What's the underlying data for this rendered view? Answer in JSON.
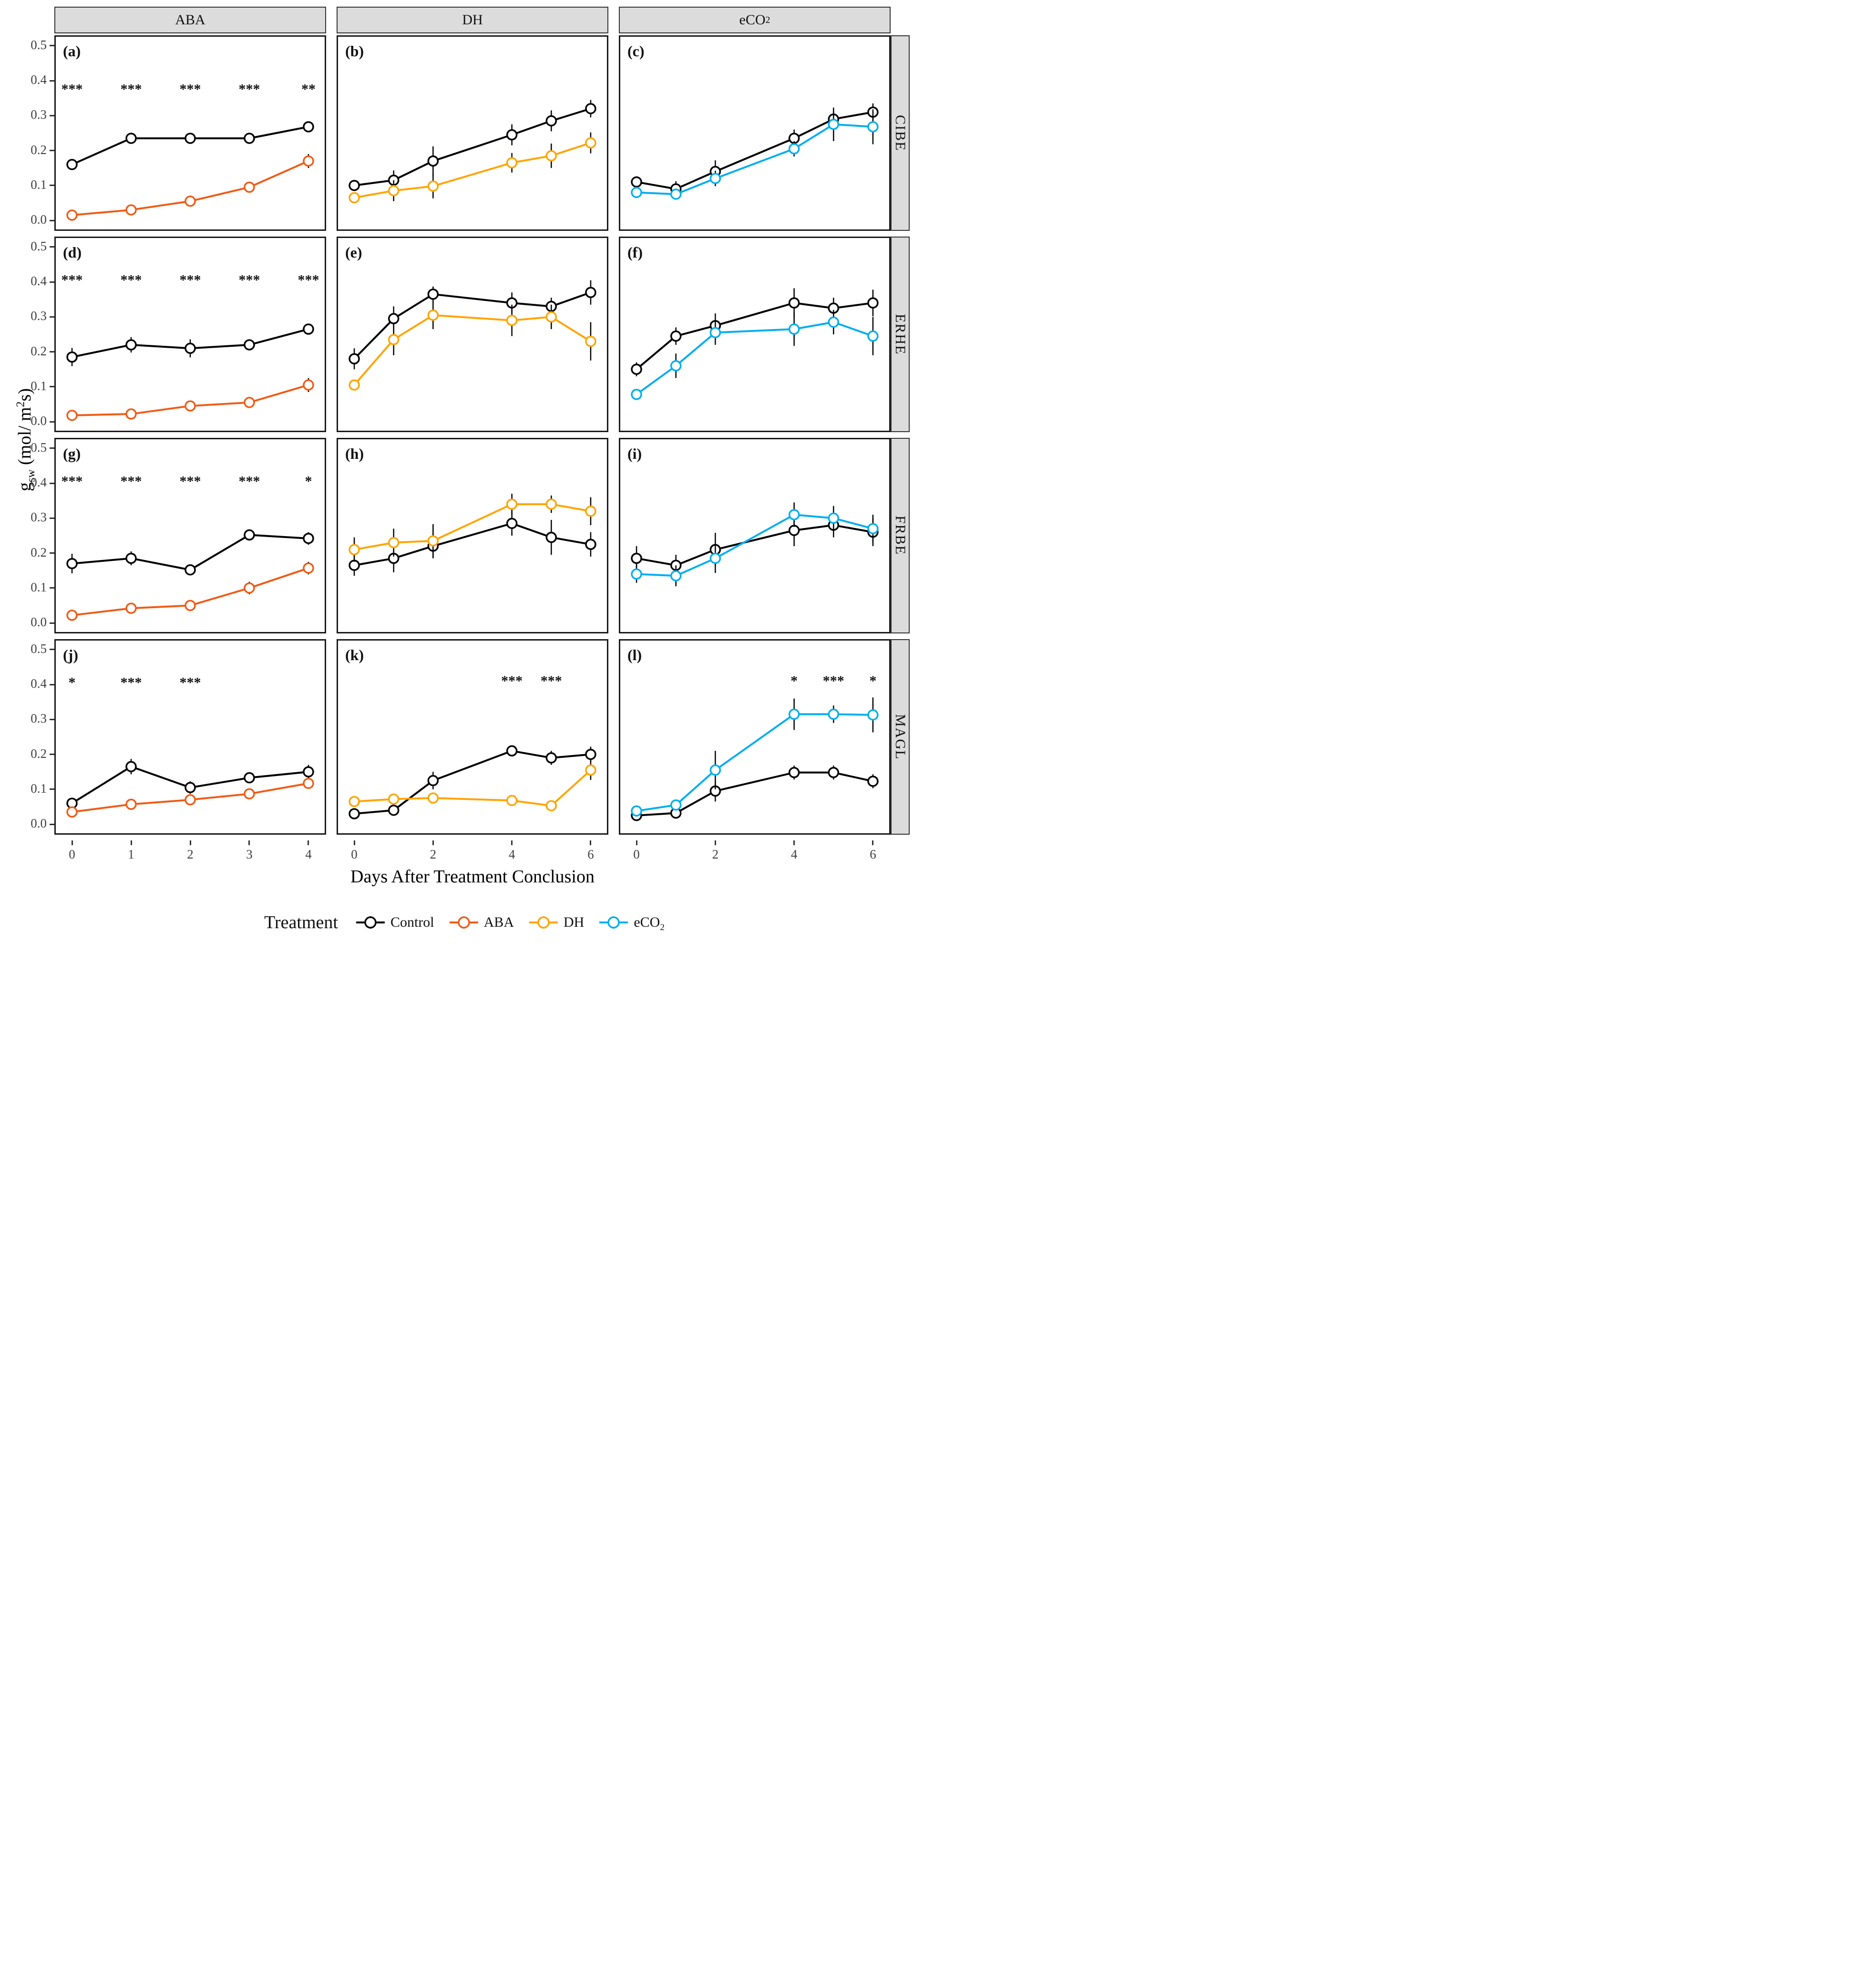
{
  "figure": {
    "col_headers": [
      {
        "text": "ABA",
        "sub": ""
      },
      {
        "text": "DH",
        "sub": ""
      },
      {
        "text": "eCO",
        "sub": "2"
      }
    ],
    "row_labels": [
      "CIBE",
      "ERHE",
      "FRBE",
      "MAGL"
    ],
    "xlabel": "Days After Treatment Conclusion",
    "ylabel": {
      "main": "g",
      "sub": "sw",
      "unit_pre": " (mol/ m",
      "sup": "2",
      "unit_post": "s)"
    },
    "yticks": [
      "0.0",
      "0.1",
      "0.2",
      "0.3",
      "0.4",
      "0.5"
    ],
    "ylim": [
      0,
      0.5
    ],
    "xticks": [
      [
        0,
        1,
        2,
        3,
        4
      ],
      [
        0,
        2,
        4,
        6
      ],
      [
        0,
        2,
        4,
        6
      ]
    ],
    "xmax_per_col": [
      4,
      6,
      6
    ],
    "colors": {
      "control": "#000000",
      "aba": "#F05B16",
      "dh": "#FFA400",
      "eco2": "#00AEEF",
      "strip_bg": "#DCDCDC",
      "strip_border": "#333333",
      "panel_border": "#1a1a1a"
    },
    "legend": {
      "title": "Treatment",
      "items": [
        {
          "label": "Control",
          "sub": "",
          "color": "#000000"
        },
        {
          "label": "ABA",
          "sub": "",
          "color": "#F05B16"
        },
        {
          "label": "DH",
          "sub": "",
          "color": "#FFA400"
        },
        {
          "label": "eCO",
          "sub": "2",
          "color": "#00AEEF"
        }
      ]
    }
  },
  "chart_data": [
    {
      "type": "line",
      "letter": "(a)",
      "col": "ABA",
      "row": "CIBE",
      "x": [
        0,
        1,
        2,
        3,
        4
      ],
      "xmax": 4,
      "ylim": [
        0,
        0.5
      ],
      "sig": [
        "***",
        "***",
        "***",
        "***",
        "**"
      ],
      "sig_y": 0.375,
      "series": [
        {
          "name": "Control",
          "color": "#000000",
          "values": [
            0.16,
            0.235,
            0.235,
            0.235,
            0.268
          ],
          "err": [
            0.013,
            0.012,
            0.012,
            0.012,
            0.014
          ]
        },
        {
          "name": "ABA",
          "color": "#F05B16",
          "values": [
            0.015,
            0.03,
            0.055,
            0.095,
            0.17
          ],
          "err": [
            0.004,
            0.006,
            0.007,
            0.01,
            0.02
          ]
        }
      ]
    },
    {
      "type": "line",
      "letter": "(b)",
      "col": "DH",
      "row": "CIBE",
      "x": [
        0,
        1,
        2,
        4,
        5,
        6
      ],
      "xmax": 6,
      "ylim": [
        0,
        0.5
      ],
      "sig": [
        "",
        "",
        "",
        "",
        "",
        ""
      ],
      "sig_y": 0.4,
      "series": [
        {
          "name": "Control",
          "color": "#000000",
          "values": [
            0.1,
            0.115,
            0.17,
            0.245,
            0.285,
            0.32
          ],
          "err": [
            0.012,
            0.028,
            0.042,
            0.03,
            0.03,
            0.025
          ]
        },
        {
          "name": "DH",
          "color": "#FFA400",
          "values": [
            0.065,
            0.085,
            0.098,
            0.165,
            0.185,
            0.222
          ],
          "err": [
            0.012,
            0.03,
            0.035,
            0.028,
            0.035,
            0.03
          ]
        }
      ]
    },
    {
      "type": "line",
      "letter": "(c)",
      "col": "eCO2",
      "row": "CIBE",
      "x": [
        0,
        1,
        2,
        4,
        5,
        6
      ],
      "xmax": 6,
      "ylim": [
        0,
        0.5
      ],
      "sig": [
        "",
        "",
        "",
        "",
        "",
        ""
      ],
      "sig_y": 0.4,
      "series": [
        {
          "name": "Control",
          "color": "#000000",
          "values": [
            0.11,
            0.09,
            0.14,
            0.235,
            0.29,
            0.31
          ],
          "err": [
            0.015,
            0.022,
            0.032,
            0.025,
            0.022,
            0.025
          ]
        },
        {
          "name": "eCO2",
          "color": "#00AEEF",
          "values": [
            0.08,
            0.075,
            0.12,
            0.205,
            0.275,
            0.268
          ],
          "err": [
            0.013,
            0.015,
            0.022,
            0.022,
            0.048,
            0.05
          ]
        }
      ]
    },
    {
      "type": "line",
      "letter": "(d)",
      "col": "ABA",
      "row": "ERHE",
      "x": [
        0,
        1,
        2,
        3,
        4
      ],
      "xmax": 4,
      "ylim": [
        0,
        0.5
      ],
      "sig": [
        "***",
        "***",
        "***",
        "***",
        "***"
      ],
      "sig_y": 0.405,
      "series": [
        {
          "name": "Control",
          "color": "#000000",
          "values": [
            0.185,
            0.22,
            0.21,
            0.22,
            0.265
          ],
          "err": [
            0.026,
            0.022,
            0.026,
            0.012,
            0.013
          ]
        },
        {
          "name": "ABA",
          "color": "#F05B16",
          "values": [
            0.018,
            0.022,
            0.045,
            0.055,
            0.105
          ],
          "err": [
            0.005,
            0.006,
            0.008,
            0.01,
            0.02
          ]
        }
      ]
    },
    {
      "type": "line",
      "letter": "(e)",
      "col": "DH",
      "row": "ERHE",
      "x": [
        0,
        1,
        2,
        4,
        5,
        6
      ],
      "xmax": 6,
      "ylim": [
        0,
        0.5
      ],
      "sig": [
        "",
        "",
        "",
        "",
        "",
        ""
      ],
      "sig_y": 0.4,
      "series": [
        {
          "name": "Control",
          "color": "#000000",
          "values": [
            0.18,
            0.295,
            0.365,
            0.34,
            0.33,
            0.37
          ],
          "err": [
            0.03,
            0.035,
            0.022,
            0.03,
            0.025,
            0.035
          ]
        },
        {
          "name": "DH",
          "color": "#FFA400",
          "values": [
            0.105,
            0.235,
            0.305,
            0.29,
            0.3,
            0.23
          ],
          "err": [
            0.015,
            0.045,
            0.04,
            0.045,
            0.035,
            0.055
          ]
        }
      ]
    },
    {
      "type": "line",
      "letter": "(f)",
      "col": "eCO2",
      "row": "ERHE",
      "x": [
        0,
        1,
        2,
        4,
        5,
        6
      ],
      "xmax": 6,
      "ylim": [
        0,
        0.5
      ],
      "sig": [
        "",
        "",
        "",
        "",
        "",
        ""
      ],
      "sig_y": 0.4,
      "series": [
        {
          "name": "Control",
          "color": "#000000",
          "values": [
            0.15,
            0.245,
            0.275,
            0.34,
            0.325,
            0.34
          ],
          "err": [
            0.02,
            0.025,
            0.035,
            0.042,
            0.03,
            0.038
          ]
        },
        {
          "name": "eCO2",
          "color": "#00AEEF",
          "values": [
            0.078,
            0.16,
            0.255,
            0.265,
            0.285,
            0.245
          ],
          "err": [
            0.01,
            0.035,
            0.035,
            0.048,
            0.035,
            0.055
          ]
        }
      ]
    },
    {
      "type": "line",
      "letter": "(g)",
      "col": "ABA",
      "row": "FRBE",
      "x": [
        0,
        1,
        2,
        3,
        4
      ],
      "xmax": 4,
      "ylim": [
        0,
        0.5
      ],
      "sig": [
        "***",
        "***",
        "***",
        "***",
        "*"
      ],
      "sig_y": 0.405,
      "series": [
        {
          "name": "Control",
          "color": "#000000",
          "values": [
            0.17,
            0.185,
            0.152,
            0.252,
            0.242
          ],
          "err": [
            0.028,
            0.02,
            0.015,
            0.015,
            0.018
          ]
        },
        {
          "name": "ABA",
          "color": "#F05B16",
          "values": [
            0.022,
            0.042,
            0.05,
            0.1,
            0.157
          ],
          "err": [
            0.008,
            0.013,
            0.01,
            0.018,
            0.018
          ]
        }
      ]
    },
    {
      "type": "line",
      "letter": "(h)",
      "col": "DH",
      "row": "FRBE",
      "x": [
        0,
        1,
        2,
        4,
        5,
        6
      ],
      "xmax": 6,
      "ylim": [
        0,
        0.5
      ],
      "sig": [
        "",
        "",
        "",
        "",
        "",
        ""
      ],
      "sig_y": 0.4,
      "series": [
        {
          "name": "Control",
          "color": "#000000",
          "values": [
            0.165,
            0.185,
            0.22,
            0.285,
            0.245,
            0.225
          ],
          "err": [
            0.03,
            0.04,
            0.035,
            0.035,
            0.05,
            0.035
          ]
        },
        {
          "name": "DH",
          "color": "#FFA400",
          "values": [
            0.21,
            0.23,
            0.235,
            0.34,
            0.34,
            0.32
          ],
          "err": [
            0.035,
            0.04,
            0.048,
            0.03,
            0.025,
            0.04
          ]
        }
      ]
    },
    {
      "type": "line",
      "letter": "(i)",
      "col": "eCO2",
      "row": "FRBE",
      "x": [
        0,
        1,
        2,
        4,
        5,
        6
      ],
      "xmax": 6,
      "ylim": [
        0,
        0.5
      ],
      "sig": [
        "",
        "",
        "",
        "",
        "",
        ""
      ],
      "sig_y": 0.4,
      "series": [
        {
          "name": "Control",
          "color": "#000000",
          "values": [
            0.185,
            0.165,
            0.21,
            0.265,
            0.28,
            0.26
          ],
          "err": [
            0.035,
            0.03,
            0.048,
            0.045,
            0.035,
            0.04
          ]
        },
        {
          "name": "eCO2",
          "color": "#00AEEF",
          "values": [
            0.14,
            0.135,
            0.185,
            0.31,
            0.3,
            0.27
          ],
          "err": [
            0.025,
            0.03,
            0.042,
            0.035,
            0.035,
            0.04
          ]
        }
      ]
    },
    {
      "type": "line",
      "letter": "(j)",
      "col": "ABA",
      "row": "MAGL",
      "x": [
        0,
        1,
        2,
        3,
        4
      ],
      "xmax": 4,
      "ylim": [
        0,
        0.5
      ],
      "sig": [
        "*",
        "***",
        "***",
        "",
        ""
      ],
      "sig_y": 0.405,
      "series": [
        {
          "name": "Control",
          "color": "#000000",
          "values": [
            0.06,
            0.165,
            0.105,
            0.133,
            0.15
          ],
          "err": [
            0.015,
            0.022,
            0.018,
            0.015,
            0.02
          ]
        },
        {
          "name": "ABA",
          "color": "#F05B16",
          "values": [
            0.035,
            0.057,
            0.07,
            0.087,
            0.117
          ],
          "err": [
            0.012,
            0.01,
            0.012,
            0.015,
            0.015
          ]
        }
      ]
    },
    {
      "type": "line",
      "letter": "(k)",
      "col": "DH",
      "row": "MAGL",
      "x": [
        0,
        1,
        2,
        4,
        5,
        6
      ],
      "xmax": 6,
      "ylim": [
        0,
        0.5
      ],
      "sig": [
        "",
        "",
        "",
        "***",
        "***",
        ""
      ],
      "sig_y": 0.41,
      "series": [
        {
          "name": "Control",
          "color": "#000000",
          "values": [
            0.03,
            0.04,
            0.125,
            0.21,
            0.19,
            0.2
          ],
          "err": [
            0.008,
            0.01,
            0.025,
            0.015,
            0.02,
            0.022
          ]
        },
        {
          "name": "DH",
          "color": "#FFA400",
          "values": [
            0.065,
            0.072,
            0.075,
            0.068,
            0.053,
            0.155
          ],
          "err": [
            0.012,
            0.01,
            0.012,
            0.012,
            0.01,
            0.028
          ]
        }
      ]
    },
    {
      "type": "line",
      "letter": "(l)",
      "col": "eCO2",
      "row": "MAGL",
      "x": [
        0,
        1,
        2,
        4,
        5,
        6
      ],
      "xmax": 6,
      "ylim": [
        0,
        0.5
      ],
      "sig": [
        "",
        "",
        "",
        "*",
        "***",
        "*"
      ],
      "sig_y": 0.41,
      "series": [
        {
          "name": "Control",
          "color": "#000000",
          "values": [
            0.025,
            0.032,
            0.095,
            0.148,
            0.148,
            0.123
          ],
          "err": [
            0.008,
            0.008,
            0.03,
            0.02,
            0.02,
            0.02
          ]
        },
        {
          "name": "eCO2",
          "color": "#00AEEF",
          "values": [
            0.038,
            0.055,
            0.155,
            0.315,
            0.315,
            0.313
          ],
          "err": [
            0.01,
            0.012,
            0.055,
            0.045,
            0.025,
            0.05
          ]
        }
      ]
    }
  ]
}
